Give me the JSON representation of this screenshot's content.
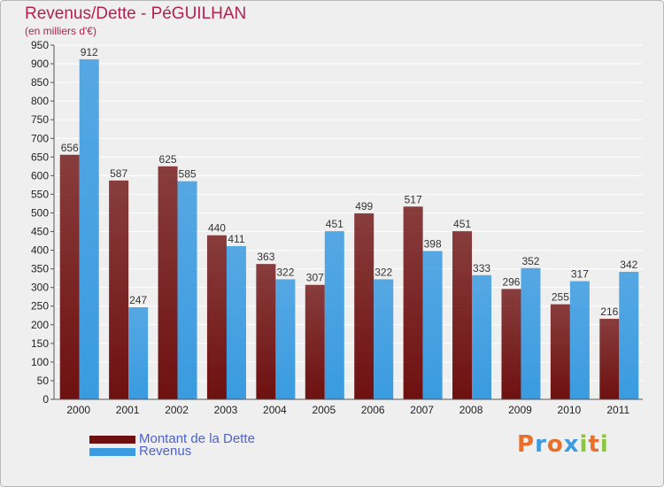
{
  "chart_data": {
    "type": "bar",
    "title": "Revenus/Dette - PéGUILHAN",
    "subtitle": "(en milliers d'€)",
    "xlabel": "",
    "ylabel": "",
    "ylim": [
      0,
      950
    ],
    "yticks": [
      0,
      50,
      100,
      150,
      200,
      250,
      300,
      350,
      400,
      450,
      500,
      550,
      600,
      650,
      700,
      750,
      800,
      850,
      900,
      950
    ],
    "categories": [
      "2000",
      "2001",
      "2002",
      "2003",
      "2004",
      "2005",
      "2006",
      "2007",
      "2008",
      "2009",
      "2010",
      "2011"
    ],
    "series": [
      {
        "name": "Montant de la Dette",
        "color": "#6e1010",
        "values": [
          656,
          587,
          625,
          440,
          363,
          307,
          499,
          517,
          451,
          296,
          255,
          216
        ]
      },
      {
        "name": "Revenus",
        "color": "#3a9be0",
        "values": [
          912,
          247,
          585,
          411,
          322,
          451,
          322,
          398,
          333,
          352,
          317,
          342
        ]
      }
    ],
    "grid": true,
    "legend": "bottom-left"
  },
  "logo": {
    "text": "Proxiti",
    "letters": [
      "P",
      "r",
      "o",
      "x",
      "i",
      "t",
      "i"
    ],
    "colors": [
      "#e8702a",
      "#3f9be0",
      "#e8702a",
      "#3f9be0",
      "#8bc63e",
      "#e8702a",
      "#8bc63e"
    ]
  }
}
